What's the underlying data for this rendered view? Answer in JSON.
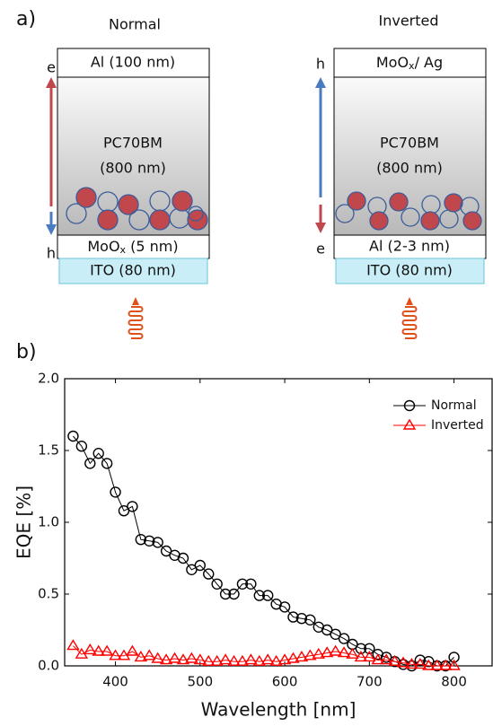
{
  "panel_a": {
    "label": "a)",
    "normal": {
      "title": "Normal",
      "top": "Al (100 nm)",
      "active": [
        "PC70BM",
        "(800 nm)"
      ],
      "interlayer": {
        "text": "MoO",
        "sub": "x",
        "rest": " (5 nm)"
      },
      "substrate": "ITO (80 nm)",
      "top_carrier": "e",
      "bottom_carrier": "h"
    },
    "inverted": {
      "title": "Inverted",
      "top": {
        "text": "MoO",
        "sub": "x",
        "rest": "/ Ag"
      },
      "active": [
        "PC70BM",
        "(800 nm)"
      ],
      "interlayer": "Al (2-3 nm)",
      "substrate": "ITO (80 nm)",
      "top_carrier": "h",
      "bottom_carrier": "e"
    }
  },
  "chart_data": {
    "type": "line",
    "panel_label": "b)",
    "xlabel": "Wavelength [nm]",
    "ylabel": "EQE [%]",
    "x": [
      350,
      360,
      370,
      380,
      390,
      400,
      410,
      420,
      430,
      440,
      450,
      460,
      470,
      480,
      490,
      500,
      510,
      520,
      530,
      540,
      550,
      560,
      570,
      580,
      590,
      600,
      610,
      620,
      630,
      640,
      650,
      660,
      670,
      680,
      690,
      700,
      710,
      720,
      730,
      740,
      750,
      760,
      770,
      780,
      790,
      800
    ],
    "series": [
      {
        "name": "Normal",
        "color": "#000000",
        "marker": "circle",
        "values": [
          1.6,
          1.53,
          1.41,
          1.48,
          1.41,
          1.21,
          1.08,
          1.11,
          0.88,
          0.87,
          0.86,
          0.8,
          0.77,
          0.75,
          0.67,
          0.7,
          0.64,
          0.57,
          0.5,
          0.5,
          0.57,
          0.57,
          0.49,
          0.49,
          0.43,
          0.41,
          0.34,
          0.33,
          0.32,
          0.27,
          0.25,
          0.22,
          0.19,
          0.15,
          0.12,
          0.12,
          0.08,
          0.06,
          0.03,
          0.01,
          0.0,
          0.04,
          0.03,
          0.0,
          0.0,
          0.06
        ]
      },
      {
        "name": "Inverted",
        "color": "#ff0000",
        "marker": "triangle",
        "values": [
          0.14,
          0.08,
          0.11,
          0.1,
          0.1,
          0.07,
          0.07,
          0.1,
          0.06,
          0.07,
          0.05,
          0.04,
          0.05,
          0.04,
          0.05,
          0.04,
          0.03,
          0.03,
          0.04,
          0.03,
          0.03,
          0.04,
          0.03,
          0.04,
          0.03,
          0.04,
          0.05,
          0.06,
          0.07,
          0.08,
          0.09,
          0.1,
          0.09,
          0.08,
          0.06,
          0.06,
          0.04,
          0.04,
          0.03,
          0.02,
          0.01,
          0.01,
          0.0,
          0.0,
          0.0,
          0.0
        ]
      }
    ],
    "xlim": [
      340,
      845
    ],
    "xticks": [
      400,
      500,
      600,
      700,
      800
    ],
    "ylim": [
      0,
      2
    ],
    "yticks": [
      {
        "value": 0,
        "label": "0.0"
      },
      {
        "value": 0.5,
        "label": "0.5"
      },
      {
        "value": 1,
        "label": "1.0"
      },
      {
        "value": 1.5,
        "label": "1.5"
      },
      {
        "value": 2,
        "label": "2.0"
      }
    ],
    "legend": "upper right",
    "grid": false
  }
}
